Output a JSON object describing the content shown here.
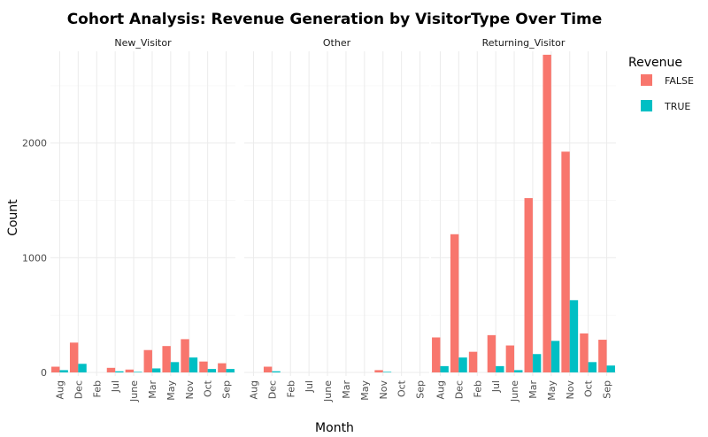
{
  "chart_data": {
    "type": "bar",
    "title": "Cohort Analysis: Revenue Generation by VisitorType Over Time",
    "xlabel": "Month",
    "ylabel": "Count",
    "ylim": [
      0,
      2800
    ],
    "yticks": [
      0,
      1000,
      2000
    ],
    "grid": true,
    "legend": {
      "title": "Revenue",
      "position": "right"
    },
    "categories": [
      "Aug",
      "Dec",
      "Feb",
      "Jul",
      "June",
      "Mar",
      "May",
      "Nov",
      "Oct",
      "Sep"
    ],
    "series_names": [
      "FALSE",
      "TRUE"
    ],
    "series_colors": [
      "#F8766D",
      "#00BFC4"
    ],
    "facets": [
      {
        "name": "New_Visitor",
        "series": [
          {
            "name": "FALSE",
            "values": [
              50,
              260,
              0,
              40,
              25,
              195,
              230,
              290,
              95,
              80
            ]
          },
          {
            "name": "TRUE",
            "values": [
              20,
              75,
              0,
              10,
              5,
              35,
              90,
              130,
              30,
              30
            ]
          }
        ]
      },
      {
        "name": "Other",
        "series": [
          {
            "name": "FALSE",
            "values": [
              0,
              50,
              0,
              0,
              0,
              0,
              0,
              20,
              0,
              0
            ]
          },
          {
            "name": "TRUE",
            "values": [
              0,
              10,
              0,
              0,
              0,
              0,
              0,
              5,
              0,
              0
            ]
          }
        ]
      },
      {
        "name": "Returning_Visitor",
        "series": [
          {
            "name": "FALSE",
            "values": [
              305,
              1205,
              180,
              325,
              235,
              1520,
              2770,
              1925,
              340,
              285
            ]
          },
          {
            "name": "TRUE",
            "values": [
              55,
              130,
              0,
              55,
              20,
              160,
              275,
              630,
              90,
              60
            ]
          }
        ]
      }
    ]
  }
}
